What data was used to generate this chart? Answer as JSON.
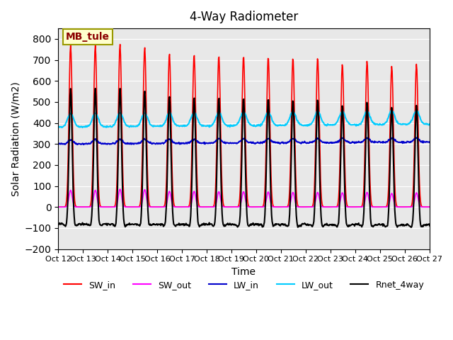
{
  "title": "4-Way Radiometer",
  "xlabel": "Time",
  "ylabel": "Solar Radiation (W/m2)",
  "annotation": "MB_tule",
  "ylim": [
    -200,
    850
  ],
  "yticks": [
    -200,
    -100,
    0,
    100,
    200,
    300,
    400,
    500,
    600,
    700,
    800
  ],
  "x_tick_labels": [
    "Oct 12",
    "Oct 13",
    "Oct 14",
    "Oct 15",
    "Oct 16",
    "Oct 17",
    "Oct 18",
    "Oct 19",
    "Oct 20",
    "Oct 21",
    "Oct 22",
    "Oct 23",
    "Oct 24",
    "Oct 25",
    "Oct 26",
    "Oct 27"
  ],
  "num_days": 16,
  "colors": {
    "SW_in": "#ff0000",
    "SW_out": "#ff00ff",
    "LW_in": "#0000cc",
    "LW_out": "#00ccff",
    "Rnet_4way": "#000000"
  },
  "line_widths": {
    "SW_in": 1.2,
    "SW_out": 1.2,
    "LW_in": 1.5,
    "LW_out": 1.5,
    "Rnet_4way": 1.5
  },
  "background_color": "#e8e8e8",
  "legend_labels": [
    "SW_in",
    "SW_out",
    "LW_in",
    "LW_out",
    "Rnet_4way"
  ]
}
